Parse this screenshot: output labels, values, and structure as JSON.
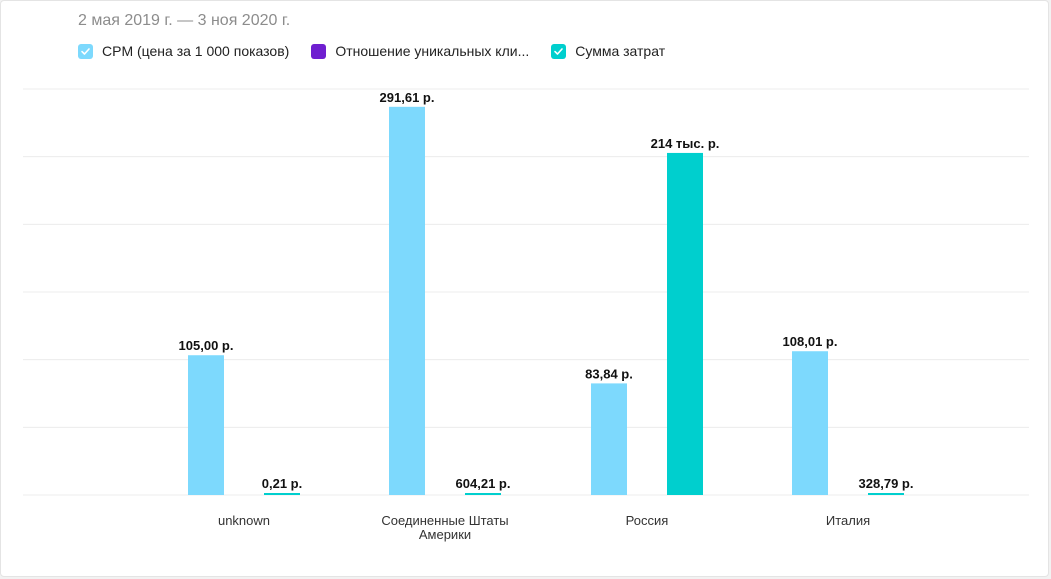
{
  "header": {
    "date_range": "2 мая 2019 г. — 3 ноя 2020 г."
  },
  "legend": [
    {
      "label": "CPM (цена за 1 000 показов)",
      "color": "#7dd9fd",
      "checked": true
    },
    {
      "label": "Отношение уникальных кли...",
      "color": "#6f1fd0",
      "checked": false
    },
    {
      "label": "Сумма затрат",
      "color": "#00cfce",
      "checked": true
    }
  ],
  "chart_data": {
    "type": "bar",
    "categories": [
      [
        "unknown"
      ],
      [
        "Соединенные Штаты",
        "Америки"
      ],
      [
        "Россия"
      ],
      [
        "Италия"
      ]
    ],
    "series": [
      {
        "name": "CPM (цена за 1 000 показов)",
        "color": "#7dd9fd",
        "values": [
          105.0,
          291.61,
          83.84,
          108.01
        ],
        "labels": [
          "105,00 р.",
          "291,61 р.",
          "83,84 р.",
          "108,01 р."
        ]
      },
      {
        "name": "Сумма затрат",
        "color": "#00cfce",
        "values": [
          0.21,
          604.21,
          214000,
          328.79
        ],
        "labels": [
          "0,21 р.",
          "604,21 р.",
          "214 тыс. р.",
          "328,79 р."
        ]
      }
    ],
    "grid": true,
    "legend_position": "top-left"
  }
}
